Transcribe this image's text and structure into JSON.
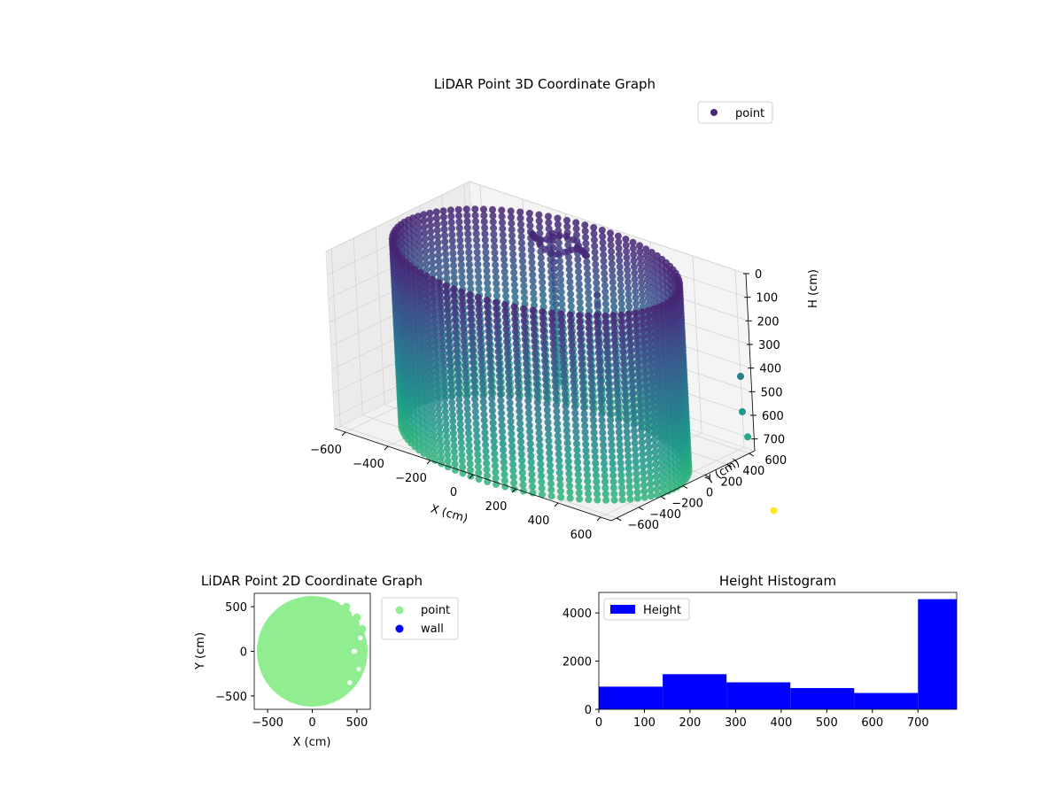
{
  "chart_data": [
    {
      "type": "scatter",
      "projection": "3d",
      "title": "LiDAR Point 3D Coordinate Graph",
      "xlabel": "X (cm)",
      "ylabel": "Y (cm)",
      "zlabel": "H (cm)",
      "xticks": [
        "−600",
        "−400",
        "−200",
        "0",
        "200",
        "400",
        "600"
      ],
      "yticks": [
        "−600",
        "−400",
        "−200",
        "0",
        "200",
        "400",
        "600"
      ],
      "zticks": [
        "0",
        "100",
        "200",
        "300",
        "400",
        "500",
        "600",
        "700"
      ],
      "xlim": [
        -650,
        650
      ],
      "ylim": [
        -650,
        650
      ],
      "zlim": [
        0,
        750
      ],
      "z_axis_inverted": true,
      "colormap": "viridis",
      "legend": {
        "entries": [
          "point"
        ],
        "position": "upper-right",
        "marker_color": "#482878"
      },
      "series": [
        {
          "name": "point",
          "shape": "cylinder",
          "center": [
            0,
            0
          ],
          "radius_cm": 600,
          "height_range_cm": [
            0,
            780
          ],
          "notes_visible": "ring of wall points plus interior clusters"
        }
      ],
      "outliers": [
        {
          "x": 600,
          "y": 650,
          "h": 450
        },
        {
          "x": 600,
          "y": 650,
          "h": 600
        },
        {
          "x": 620,
          "y": 650,
          "h": 700
        },
        {
          "x": 700,
          "y": 700,
          "h": 1000
        }
      ],
      "grid": true
    },
    {
      "type": "scatter",
      "title": "LiDAR Point 2D Coordinate Graph",
      "xlabel": "X (cm)",
      "ylabel": "Y (cm)",
      "xticks": [
        "−500",
        "0",
        "500"
      ],
      "yticks": [
        "−500",
        "0",
        "500"
      ],
      "xlim": [
        -650,
        650
      ],
      "ylim": [
        -650,
        650
      ],
      "legend": {
        "entries": [
          "point",
          "wall"
        ],
        "position": "outside-right"
      },
      "series": [
        {
          "name": "point",
          "color": "#90ee90",
          "shape": "filled disk",
          "radius_cm": 620
        },
        {
          "name": "wall",
          "color": "#0000ff"
        }
      ]
    },
    {
      "type": "bar",
      "title": "Height Histogram",
      "xlabel": "",
      "ylabel": "",
      "xticks": [
        "0",
        "100",
        "200",
        "300",
        "400",
        "500",
        "600",
        "700"
      ],
      "yticks": [
        "0",
        "2000",
        "4000"
      ],
      "xlim": [
        0,
        785
      ],
      "ylim": [
        0,
        4850
      ],
      "legend": {
        "entries": [
          "Height"
        ],
        "position": "upper-left"
      },
      "color": "#0000ff",
      "bin_edges": [
        0,
        140,
        280,
        420,
        560,
        700,
        785
      ],
      "values": [
        940,
        1460,
        1120,
        880,
        680,
        4570
      ],
      "series": [
        {
          "name": "Height",
          "values": [
            940,
            1460,
            1120,
            880,
            680,
            4570
          ]
        }
      ]
    }
  ]
}
